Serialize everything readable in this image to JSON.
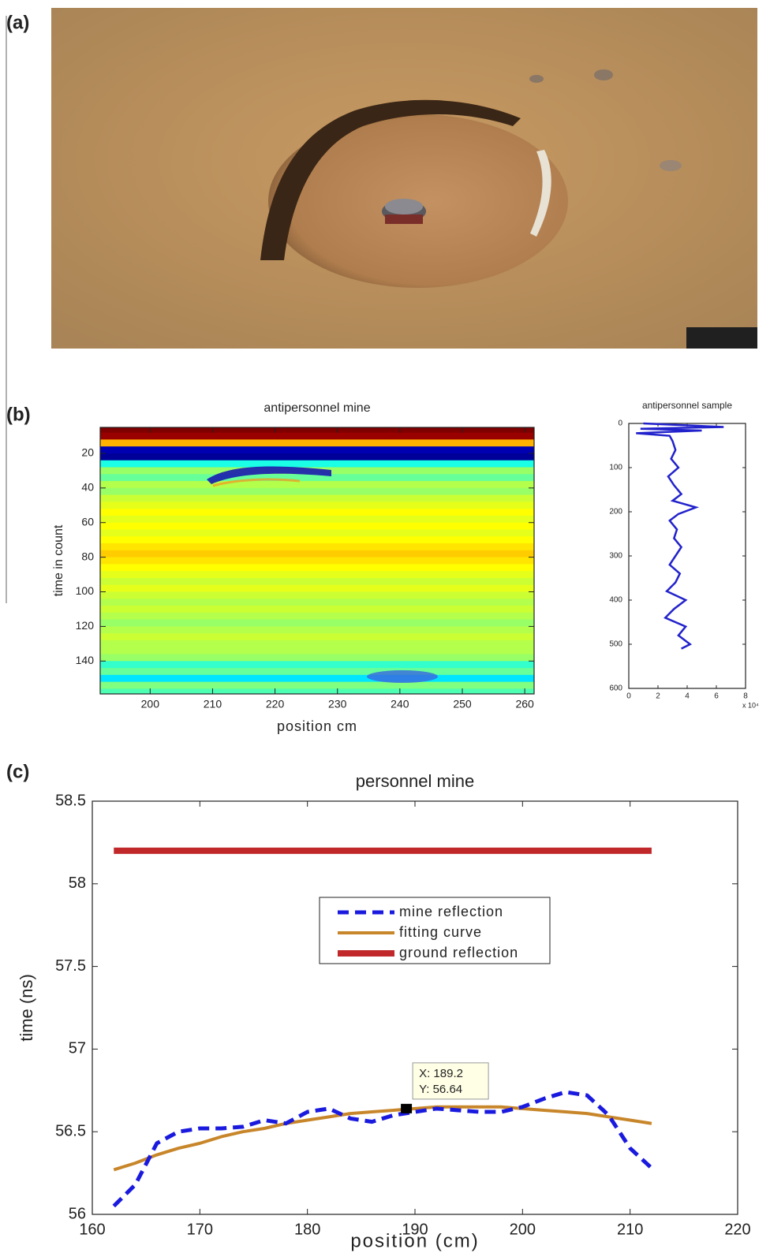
{
  "panel_labels": [
    "(a)",
    "(b)",
    "(c)"
  ],
  "chart_data": [
    {
      "type": "heatmap",
      "title": "antipersonnel mine",
      "xlabel": "position cm",
      "ylabel": "time in count",
      "xlim": [
        192,
        261.5
      ],
      "xticks": [
        200,
        210,
        220,
        230,
        240,
        250,
        260
      ],
      "ylim": [
        5,
        159
      ],
      "yticks": [
        20,
        40,
        60,
        80,
        100,
        120,
        140
      ],
      "y_reversed": true,
      "colormap": "jet",
      "zlim": [
        -1,
        1
      ],
      "y": [
        6,
        10,
        14,
        18,
        22,
        26,
        30,
        34,
        38,
        42,
        46,
        50,
        54,
        58,
        62,
        66,
        70,
        74,
        78,
        82,
        86,
        90,
        94,
        98,
        102,
        106,
        110,
        114,
        118,
        122,
        126,
        130,
        134,
        138,
        142,
        146,
        150,
        154,
        158
      ],
      "values": [
        1.0,
        0.95,
        0.4,
        -0.9,
        -0.95,
        -0.2,
        0.05,
        -0.05,
        0.1,
        0.05,
        0.15,
        0.2,
        0.25,
        0.2,
        0.25,
        0.2,
        0.25,
        0.3,
        0.35,
        0.3,
        0.25,
        0.2,
        0.15,
        0.2,
        0.15,
        0.1,
        0.15,
        0.1,
        0.05,
        0.1,
        0.15,
        0.1,
        0.1,
        0.05,
        -0.15,
        -0.05,
        -0.3,
        0,
        -0.1
      ]
    },
    {
      "type": "line",
      "orientation": "vertical",
      "title": "antipersonnel sample",
      "x_multiplier": "x 10⁴",
      "xlim": [
        0,
        8
      ],
      "xticks": [
        0,
        2,
        4,
        6,
        8
      ],
      "ylim": [
        0,
        600
      ],
      "yticks": [
        0,
        100,
        200,
        300,
        400,
        500,
        600
      ],
      "y_reversed": true,
      "color": "#2222cc",
      "y": [
        0,
        8,
        12,
        16,
        22,
        28,
        40,
        60,
        80,
        100,
        120,
        140,
        160,
        175,
        190,
        205,
        220,
        240,
        260,
        280,
        300,
        320,
        340,
        360,
        380,
        400,
        420,
        440,
        460,
        480,
        500,
        510
      ],
      "values": [
        1,
        6.5,
        0.8,
        5,
        0.5,
        2.8,
        3,
        3.2,
        2.9,
        3.4,
        2.7,
        3.1,
        3.6,
        3,
        4.6,
        3.4,
        2.8,
        3.3,
        3.1,
        3.6,
        3.2,
        2.8,
        3.5,
        3.2,
        2.6,
        3.9,
        3.1,
        2.5,
        3.9,
        3.4,
        4.2,
        3.6
      ]
    },
    {
      "type": "line",
      "title": "personnel mine",
      "xlabel": "position (cm)",
      "ylabel": "time (ns)",
      "xlim": [
        160,
        220
      ],
      "xticks": [
        160,
        170,
        180,
        190,
        200,
        210,
        220
      ],
      "ylim": [
        56,
        58.5
      ],
      "yticks": [
        56,
        56.5,
        57,
        57.5,
        58,
        58.5
      ],
      "grid": false,
      "x": [
        162,
        164,
        166,
        168,
        170,
        172,
        174,
        176,
        178,
        180,
        182,
        184,
        186,
        188,
        190,
        192,
        194,
        196,
        198,
        200,
        202,
        204,
        206,
        208,
        210,
        212
      ],
      "series": [
        {
          "name": "mine reflection",
          "color": "#1a1adf",
          "dashed": true,
          "values": [
            56.05,
            56.18,
            56.43,
            56.5,
            56.52,
            56.52,
            56.53,
            56.57,
            56.55,
            56.62,
            56.64,
            56.58,
            56.56,
            56.6,
            56.62,
            56.64,
            56.63,
            56.62,
            56.62,
            56.65,
            56.7,
            56.74,
            56.72,
            56.6,
            56.4,
            56.28
          ]
        },
        {
          "name": "fitting curve",
          "color": "#c8862a",
          "dashed": false,
          "values": [
            56.27,
            56.31,
            56.36,
            56.4,
            56.43,
            56.47,
            56.5,
            56.52,
            56.55,
            56.57,
            56.59,
            56.61,
            56.62,
            56.63,
            56.64,
            56.65,
            56.65,
            56.65,
            56.65,
            56.64,
            56.63,
            56.62,
            56.61,
            56.59,
            56.57,
            56.55
          ]
        },
        {
          "name": "ground reflection",
          "color": "#c0282a",
          "dashed": false,
          "values": [
            58.2,
            58.2,
            58.2,
            58.2,
            58.2,
            58.2,
            58.2,
            58.2,
            58.2,
            58.2,
            58.2,
            58.2,
            58.2,
            58.2,
            58.2,
            58.2,
            58.2,
            58.2,
            58.2,
            58.2,
            58.2,
            58.2,
            58.2,
            58.2,
            58.2,
            58.2
          ]
        }
      ],
      "datatip": {
        "x": 189.2,
        "y": 56.64,
        "lines": [
          "X: 189.2",
          "Y: 56.64"
        ]
      }
    }
  ]
}
